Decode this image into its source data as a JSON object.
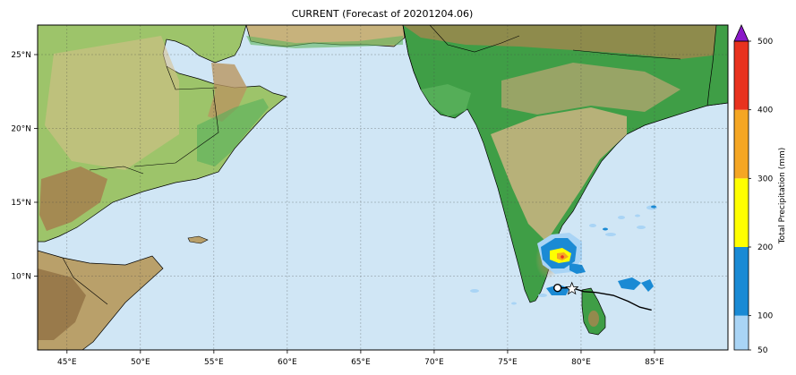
{
  "title": "CURRENT (Forecast of 20201204.06)",
  "map": {
    "lon_range": [
      43,
      90
    ],
    "lat_range": [
      5,
      27
    ],
    "lon_ticks": [
      {
        "value": 45,
        "label": "45°E"
      },
      {
        "value": 50,
        "label": "50°E"
      },
      {
        "value": 55,
        "label": "55°E"
      },
      {
        "value": 60,
        "label": "60°E"
      },
      {
        "value": 65,
        "label": "65°E"
      },
      {
        "value": 70,
        "label": "70°E"
      },
      {
        "value": 75,
        "label": "75°E"
      },
      {
        "value": 80,
        "label": "80°E"
      },
      {
        "value": 85,
        "label": "85°E"
      }
    ],
    "lat_ticks": [
      {
        "value": 10,
        "label": "10°N"
      },
      {
        "value": 15,
        "label": "15°N"
      },
      {
        "value": 20,
        "label": "20°N"
      },
      {
        "value": 25,
        "label": "25°N"
      }
    ],
    "gridlines": true,
    "colors": {
      "ocean": "#d0e6f5",
      "lowland": "#3fa34d",
      "plateau": "#c9b27a",
      "highland": "#a07a4a"
    }
  },
  "colorbar": {
    "label": "Total Precipitation (mm)",
    "ticks": [
      "50",
      "100",
      "200",
      "300",
      "400",
      "500"
    ],
    "bins": [
      {
        "from": 50,
        "to": 100,
        "color": "#a9d4f5"
      },
      {
        "from": 100,
        "to": 200,
        "color": "#1a8ad4"
      },
      {
        "from": 200,
        "to": 300,
        "color": "#ffff00"
      },
      {
        "from": 300,
        "to": 400,
        "color": "#f5a623"
      },
      {
        "from": 400,
        "to": 500,
        "color": "#e8321e"
      }
    ],
    "extend_color": "#8a19c8"
  },
  "storm_track": {
    "points": [
      [
        84.8,
        7.7
      ],
      [
        84.0,
        7.9
      ],
      [
        83.2,
        8.3
      ],
      [
        82.2,
        8.7
      ],
      [
        81.0,
        8.9
      ],
      [
        80.2,
        8.95
      ],
      [
        79.4,
        9.2
      ],
      [
        78.4,
        9.2
      ]
    ],
    "current_position": [
      78.4,
      9.2
    ]
  }
}
